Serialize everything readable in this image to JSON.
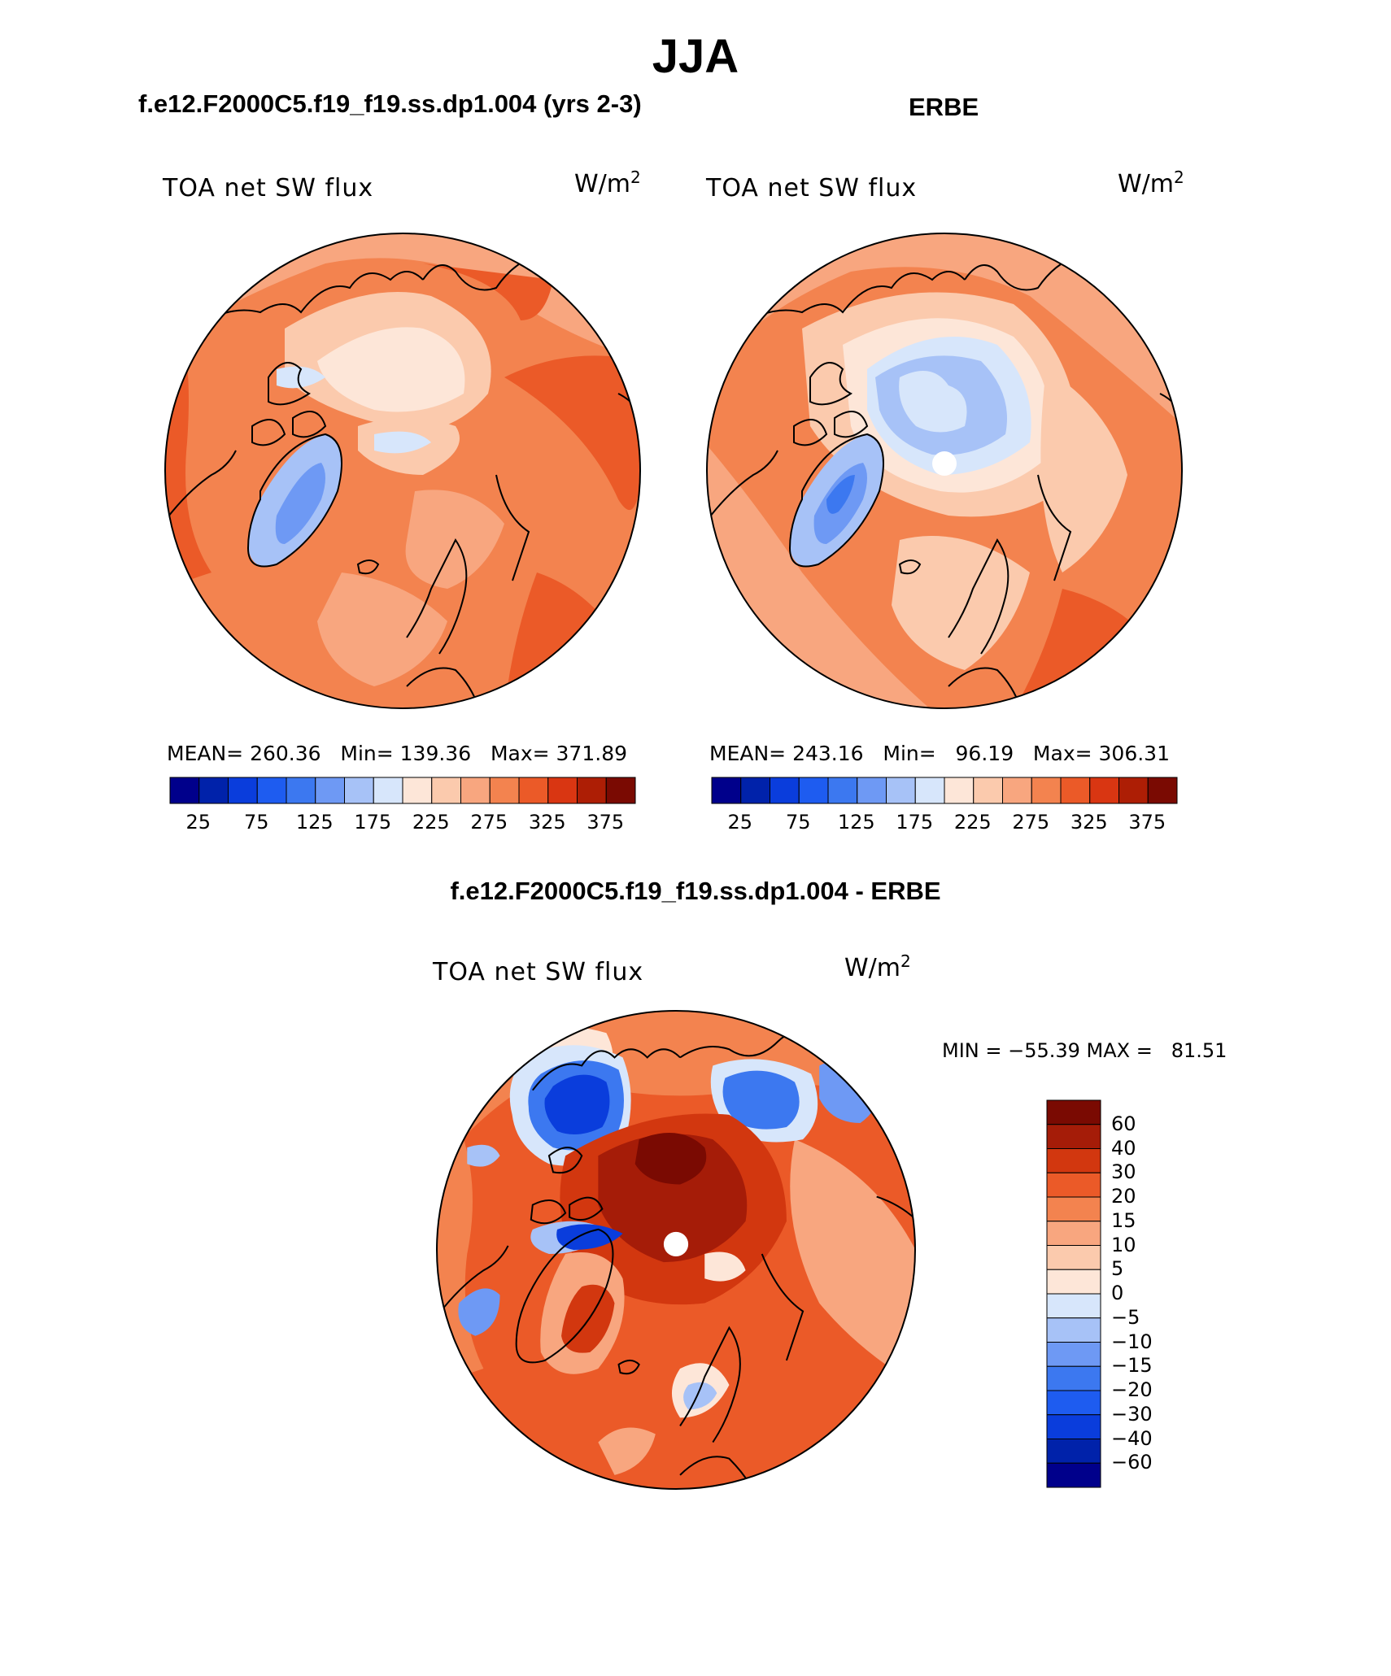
{
  "title": "JJA",
  "panels": [
    {
      "case_title": "f.e12.F2000C5.f19_f19.ss.dp1.004 (yrs 2-3)",
      "variable": "TOA net SW flux",
      "units_base": "W/m",
      "units_exp": "2",
      "stats": "MEAN= 260.36   Min= 139.36   Max= 371.89",
      "mean": 260.36,
      "min": 139.36,
      "max": 371.89
    },
    {
      "case_title": "ERBE",
      "variable": "TOA net SW flux",
      "units_base": "W/m",
      "units_exp": "2",
      "stats": "MEAN= 243.16   Min=   96.19   Max= 306.31",
      "mean": 243.16,
      "min": 96.19,
      "max": 306.31
    },
    {
      "case_title": "f.e12.F2000C5.f19_f19.ss.dp1.004 - ERBE",
      "variable": "TOA net SW flux",
      "units_base": "W/m",
      "units_exp": "2",
      "stats": "MIN = −55.39 MAX =   81.51",
      "min": -55.39,
      "max": 81.51
    }
  ],
  "abs_colorbar": {
    "colors": [
      "#00008b",
      "#0022aa",
      "#0a3ddc",
      "#1e5cf0",
      "#3c78f0",
      "#6e99f4",
      "#a7c2f7",
      "#d7e6fb",
      "#fde6d8",
      "#fbcaad",
      "#f8a67f",
      "#f3834f",
      "#eb5a28",
      "#d93612",
      "#ad1e05",
      "#7a0a02"
    ],
    "tick_labels": [
      "25",
      "75",
      "125",
      "175",
      "225",
      "275",
      "325",
      "375"
    ]
  },
  "diff_colorbar": {
    "colors_top_to_bottom": [
      "#7a0a02",
      "#a51c08",
      "#d2370f",
      "#eb5a28",
      "#f3834f",
      "#f8a67f",
      "#fbcaad",
      "#fde6d8",
      "#d7e6fb",
      "#a7c2f7",
      "#6e99f4",
      "#3c78f0",
      "#1e5cf0",
      "#0a3ddc",
      "#0022aa",
      "#00008b"
    ],
    "tick_labels": [
      "60",
      "40",
      "30",
      "20",
      "15",
      "10",
      "5",
      "0",
      "−5",
      "−10",
      "−15",
      "−20",
      "−30",
      "−40",
      "−60"
    ]
  }
}
